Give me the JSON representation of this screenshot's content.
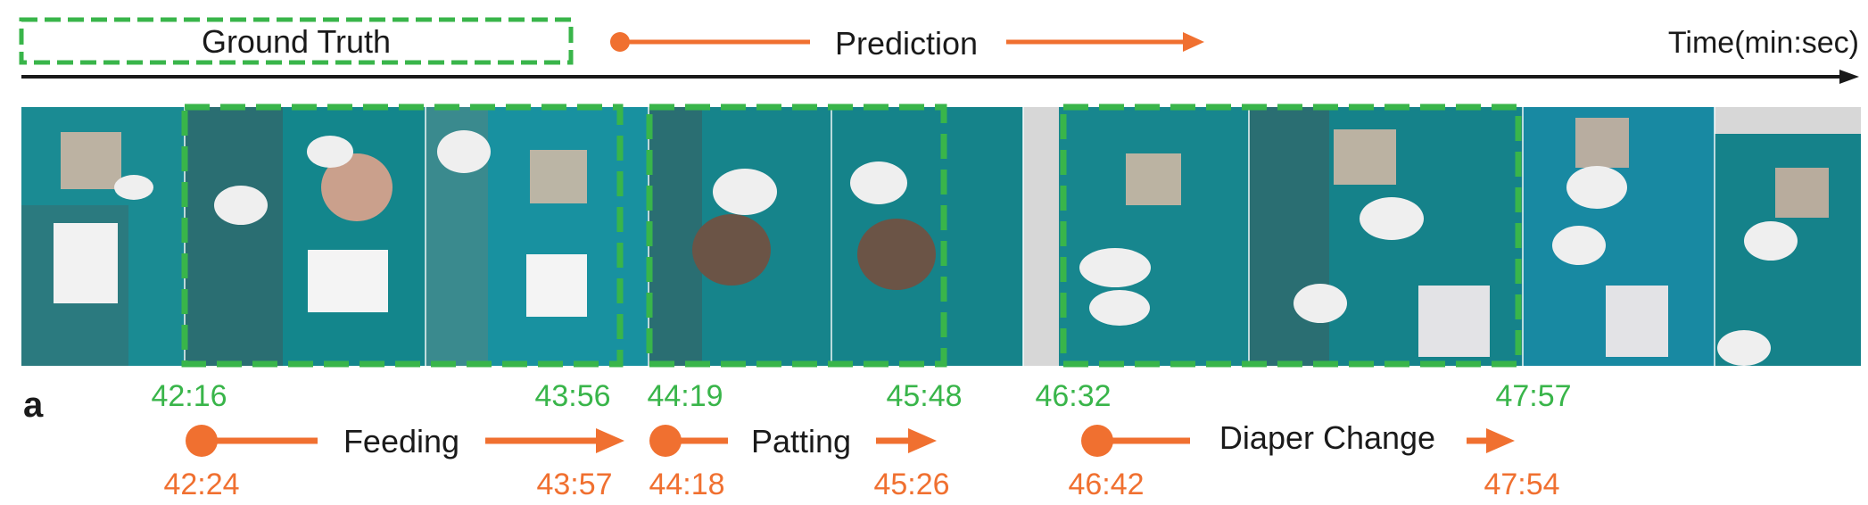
{
  "legend": {
    "ground_truth": "Ground Truth",
    "prediction": "Prediction",
    "time_axis": "Time(min:sec)"
  },
  "panel_label": "a",
  "colors": {
    "ground_truth": "#39b54a",
    "prediction": "#f07030",
    "scrub": "#0e8a90",
    "drape": "#2a6e72",
    "glove": "#eeeeee"
  },
  "ground_truth_times": {
    "feeding": {
      "start": "42:16",
      "end": "43:56"
    },
    "patting": {
      "start": "44:19",
      "end": "45:48"
    },
    "diaper_change": {
      "start": "46:32",
      "end": "47:57"
    }
  },
  "predictions": {
    "feeding": {
      "label": "Feeding",
      "start": "42:24",
      "end": "43:57"
    },
    "patting": {
      "label": "Patting",
      "start": "44:18",
      "end": "45:26"
    },
    "diaper_change": {
      "label": "Diaper Change",
      "start": "46:42",
      "end": "47:54"
    }
  },
  "frames": [
    "frame-1",
    "frame-2",
    "frame-3",
    "frame-4",
    "frame-5",
    "frame-6",
    "frame-7",
    "frame-8",
    "frame-9",
    "frame-10"
  ]
}
